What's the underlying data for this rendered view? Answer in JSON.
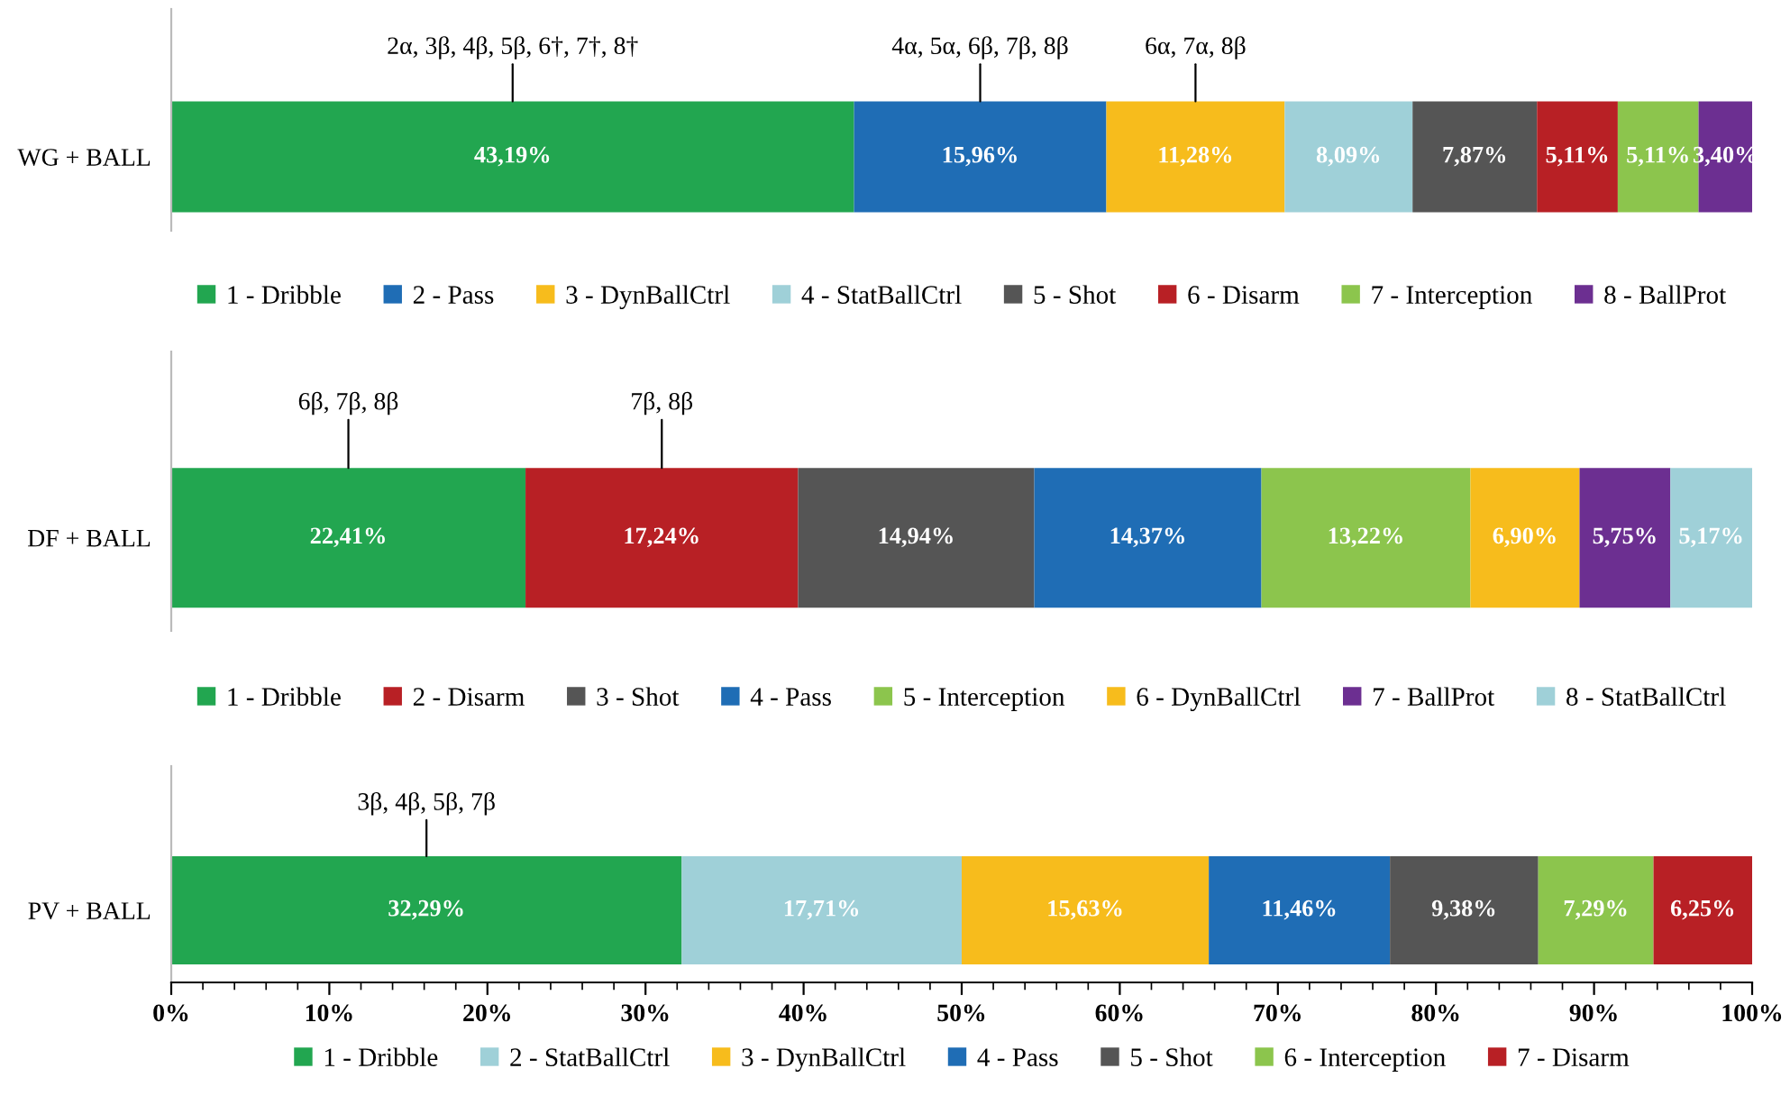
{
  "chart_data": [
    {
      "type": "bar",
      "orientation": "horizontal",
      "stacked": true,
      "categories": [
        "WG + BALL"
      ],
      "xlim": [
        0,
        100
      ],
      "tick_labels": "y",
      "legend": "bottom",
      "series": [
        {
          "name": "1 - Dribble",
          "color": "#22a650",
          "values": [
            43.19
          ],
          "value_labels": [
            "43,19%"
          ]
        },
        {
          "name": "2 - Pass",
          "color": "#1f6db5",
          "values": [
            15.96
          ],
          "value_labels": [
            "15,96%"
          ]
        },
        {
          "name": "3 - DynBallCtrl",
          "color": "#f7bc1c",
          "values": [
            11.28
          ],
          "value_labels": [
            "11,28%"
          ]
        },
        {
          "name": "4 - StatBallCtrl",
          "color": "#9fd0d8",
          "values": [
            8.09
          ],
          "value_labels": [
            "8,09%"
          ]
        },
        {
          "name": "5 - Shot",
          "color": "#555555",
          "values": [
            7.87
          ],
          "value_labels": [
            "7,87%"
          ]
        },
        {
          "name": "6 - Disarm",
          "color": "#b82025",
          "values": [
            5.11
          ],
          "value_labels": [
            "5,11%"
          ]
        },
        {
          "name": "7 - Interception",
          "color": "#8cc54d",
          "values": [
            5.11
          ],
          "value_labels": [
            "5,11%"
          ]
        },
        {
          "name": "8 - BallProt",
          "color": "#6c2f91",
          "values": [
            3.4
          ],
          "value_labels": [
            "3,40%"
          ]
        }
      ],
      "annotations": [
        "2α, 3β, 4β, 5β, 6†, 7†, 8†",
        "4α, 5α, 6β, 7β, 8β",
        "6α, 7α, 8β"
      ]
    },
    {
      "type": "bar",
      "orientation": "horizontal",
      "stacked": true,
      "categories": [
        "DF + BALL"
      ],
      "xlim": [
        0,
        100
      ],
      "tick_labels": "y",
      "legend": "bottom",
      "series": [
        {
          "name": "1 - Dribble",
          "color": "#22a650",
          "values": [
            22.41
          ],
          "value_labels": [
            "22,41%"
          ]
        },
        {
          "name": "2 - Disarm",
          "color": "#b82025",
          "values": [
            17.24
          ],
          "value_labels": [
            "17,24%"
          ]
        },
        {
          "name": "3 - Shot",
          "color": "#555555",
          "values": [
            14.94
          ],
          "value_labels": [
            "14,94%"
          ]
        },
        {
          "name": "4 - Pass",
          "color": "#1f6db5",
          "values": [
            14.37
          ],
          "value_labels": [
            "14,37%"
          ]
        },
        {
          "name": "5 - Interception",
          "color": "#8cc54d",
          "values": [
            13.22
          ],
          "value_labels": [
            "13,22%"
          ]
        },
        {
          "name": "6 - DynBallCtrl",
          "color": "#f7bc1c",
          "values": [
            6.9
          ],
          "value_labels": [
            "6,90%"
          ]
        },
        {
          "name": "7 - BallProt",
          "color": "#6c2f91",
          "values": [
            5.75
          ],
          "value_labels": [
            "5,75%"
          ]
        },
        {
          "name": "8 - StatBallCtrl",
          "color": "#9fd0d8",
          "values": [
            5.17
          ],
          "value_labels": [
            "5,17%"
          ]
        }
      ],
      "annotations": [
        "6β, 7β, 8β",
        "7β, 8β"
      ]
    },
    {
      "type": "bar",
      "orientation": "horizontal",
      "stacked": true,
      "categories": [
        "PV + BALL"
      ],
      "xlim": [
        0,
        100
      ],
      "legend": "bottom",
      "xticks": [
        {
          "value": 0,
          "label": "0%"
        },
        {
          "value": 2,
          "label": null
        },
        {
          "value": 4,
          "label": null
        },
        {
          "value": 6,
          "label": null
        },
        {
          "value": 8,
          "label": null
        },
        {
          "value": 10,
          "label": "10%"
        },
        {
          "value": 12,
          "label": null
        },
        {
          "value": 14,
          "label": null
        },
        {
          "value": 16,
          "label": null
        },
        {
          "value": 18,
          "label": null
        },
        {
          "value": 20,
          "label": "20%"
        },
        {
          "value": 22,
          "label": null
        },
        {
          "value": 24,
          "label": null
        },
        {
          "value": 26,
          "label": null
        },
        {
          "value": 28,
          "label": null
        },
        {
          "value": 30,
          "label": "30%"
        },
        {
          "value": 32,
          "label": null
        },
        {
          "value": 34,
          "label": null
        },
        {
          "value": 36,
          "label": null
        },
        {
          "value": 38,
          "label": null
        },
        {
          "value": 40,
          "label": "40%"
        },
        {
          "value": 42,
          "label": null
        },
        {
          "value": 44,
          "label": null
        },
        {
          "value": 46,
          "label": null
        },
        {
          "value": 48,
          "label": null
        },
        {
          "value": 50,
          "label": "50%"
        },
        {
          "value": 52,
          "label": null
        },
        {
          "value": 54,
          "label": null
        },
        {
          "value": 56,
          "label": null
        },
        {
          "value": 58,
          "label": null
        },
        {
          "value": 60,
          "label": "60%"
        },
        {
          "value": 62,
          "label": null
        },
        {
          "value": 64,
          "label": null
        },
        {
          "value": 66,
          "label": null
        },
        {
          "value": 68,
          "label": null
        },
        {
          "value": 70,
          "label": "70%"
        },
        {
          "value": 72,
          "label": null
        },
        {
          "value": 74,
          "label": null
        },
        {
          "value": 76,
          "label": null
        },
        {
          "value": 78,
          "label": null
        },
        {
          "value": 80,
          "label": "80%"
        },
        {
          "value": 82,
          "label": null
        },
        {
          "value": 84,
          "label": null
        },
        {
          "value": 86,
          "label": null
        },
        {
          "value": 88,
          "label": null
        },
        {
          "value": 90,
          "label": "90%"
        },
        {
          "value": 92,
          "label": null
        },
        {
          "value": 94,
          "label": null
        },
        {
          "value": 96,
          "label": null
        },
        {
          "value": 98,
          "label": null
        },
        {
          "value": 100,
          "label": "100%"
        }
      ],
      "series": [
        {
          "name": "1 - Dribble",
          "color": "#22a650",
          "values": [
            32.29
          ],
          "value_labels": [
            "32,29%"
          ]
        },
        {
          "name": "2 - StatBallCtrl",
          "color": "#9fd0d8",
          "values": [
            17.71
          ],
          "value_labels": [
            "17,71%"
          ]
        },
        {
          "name": "3 - DynBallCtrl",
          "color": "#f7bc1c",
          "values": [
            15.63
          ],
          "value_labels": [
            "15,63%"
          ]
        },
        {
          "name": "4 - Pass",
          "color": "#1f6db5",
          "values": [
            11.46
          ],
          "value_labels": [
            "11,46%"
          ]
        },
        {
          "name": "5 - Shot",
          "color": "#555555",
          "values": [
            9.38
          ],
          "value_labels": [
            "9,38%"
          ]
        },
        {
          "name": "6 - Interception",
          "color": "#8cc54d",
          "values": [
            7.29
          ],
          "value_labels": [
            "7,29%"
          ]
        },
        {
          "name": "7 - Disarm",
          "color": "#b82025",
          "values": [
            6.25
          ],
          "value_labels": [
            "6,25%"
          ]
        }
      ],
      "annotations": [
        "3β, 4β, 5β, 7β"
      ]
    }
  ]
}
